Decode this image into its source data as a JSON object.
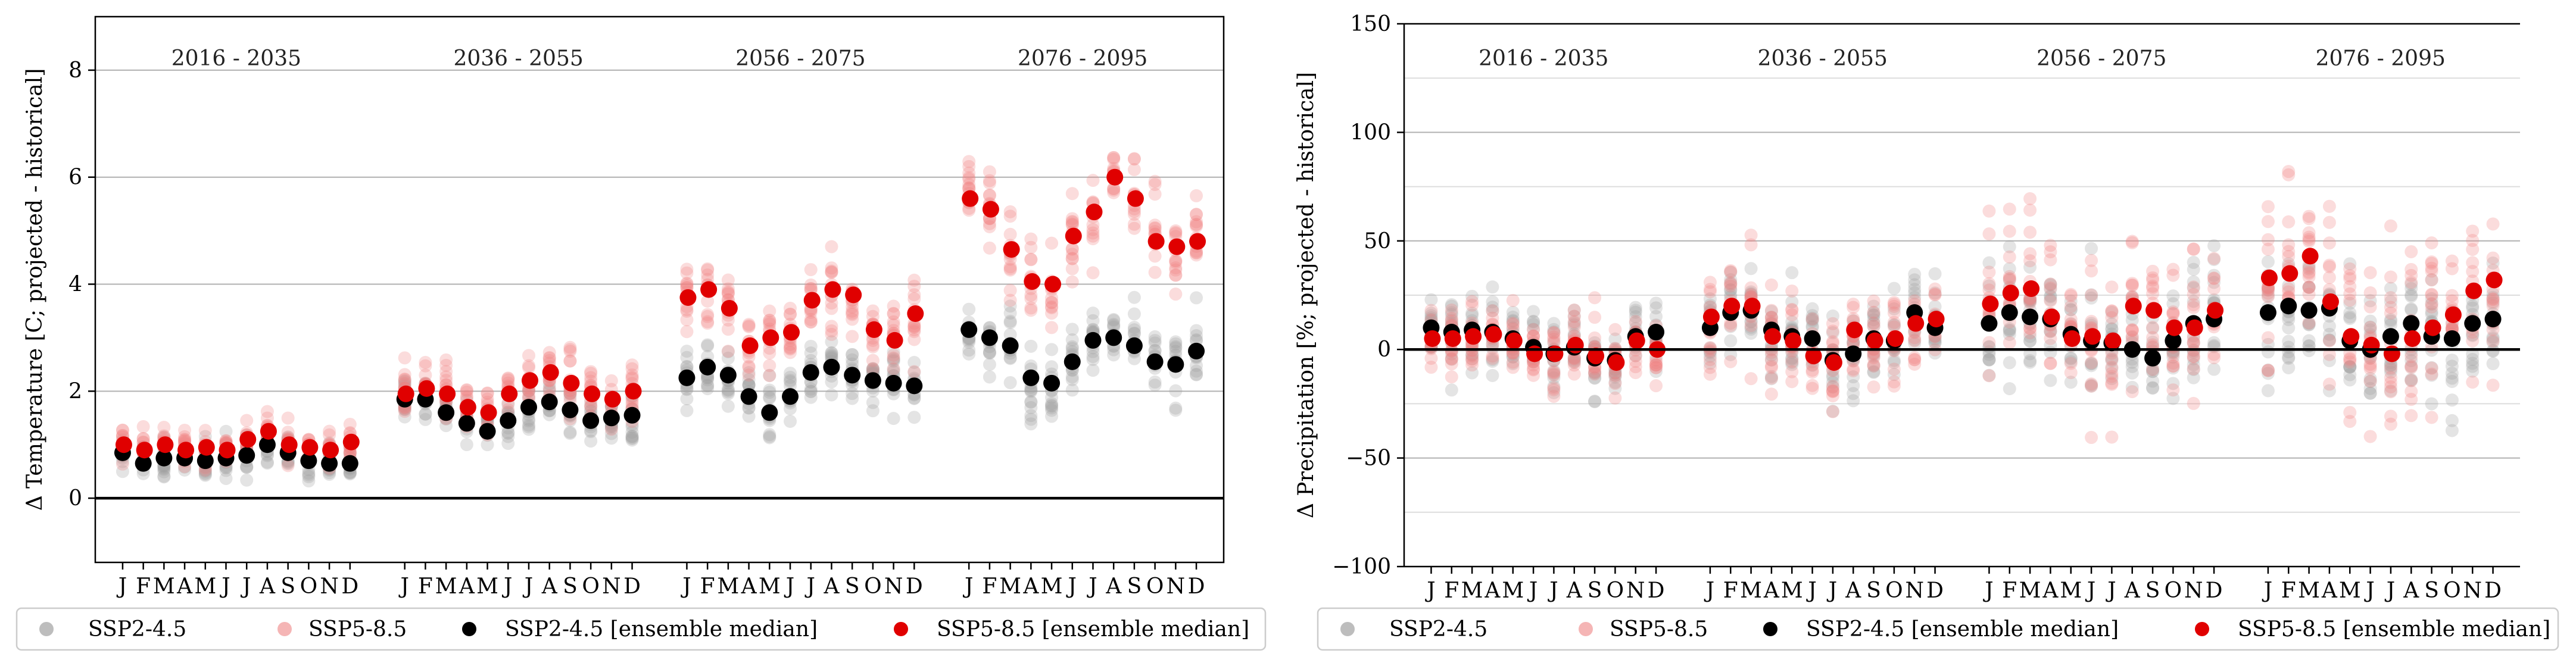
{
  "legend": {
    "entries": [
      {
        "label": "SSP2-4.5",
        "color": "#9e9e9e"
      },
      {
        "label": "SSP5-8.5",
        "color": "#f4a6a6"
      },
      {
        "label": "SSP2-4.5 [ensemble median]",
        "color": "#000000"
      },
      {
        "label": "SSP5-8.5 [ensemble median]",
        "color": "#e00000"
      }
    ]
  },
  "chart_data": [
    {
      "type": "scatter",
      "title": "",
      "ylabel": "Δ Temperature [C; projected - historical]",
      "xlabel": "",
      "ylim": [
        -1.2,
        9.0
      ],
      "yticks": [
        0,
        2,
        4,
        6,
        8
      ],
      "grid": "horizontal",
      "zero_line": true,
      "periods": [
        "2016 - 2035",
        "2036 - 2055",
        "2056 - 2075",
        "2076 - 2095"
      ],
      "month_labels": [
        "J",
        "F",
        "M",
        "A",
        "M",
        "J",
        "J",
        "A",
        "S",
        "O",
        "N",
        "D"
      ],
      "series": [
        {
          "name": "SSP2-4.5 [ensemble median]",
          "values": [
            [
              0.85,
              0.65,
              0.75,
              0.75,
              0.7,
              0.75,
              0.8,
              1.0,
              0.85,
              0.7,
              0.65,
              0.65
            ],
            [
              1.85,
              1.85,
              1.6,
              1.4,
              1.25,
              1.45,
              1.7,
              1.8,
              1.65,
              1.45,
              1.5,
              1.55
            ],
            [
              2.25,
              2.45,
              2.3,
              1.9,
              1.6,
              1.9,
              2.35,
              2.45,
              2.3,
              2.2,
              2.15,
              2.1
            ],
            [
              3.15,
              3.0,
              2.85,
              2.25,
              2.15,
              2.55,
              2.95,
              3.0,
              2.85,
              2.55,
              2.5,
              2.75
            ]
          ]
        },
        {
          "name": "SSP5-8.5 [ensemble median]",
          "values": [
            [
              1.0,
              0.9,
              1.0,
              0.9,
              0.95,
              0.9,
              1.1,
              1.25,
              1.0,
              0.95,
              0.9,
              1.05
            ],
            [
              1.95,
              2.05,
              1.95,
              1.7,
              1.6,
              1.95,
              2.2,
              2.35,
              2.15,
              1.95,
              1.85,
              2.0
            ],
            [
              3.75,
              3.9,
              3.55,
              2.85,
              3.0,
              3.1,
              3.7,
              3.9,
              3.8,
              3.15,
              2.95,
              3.45
            ],
            [
              5.6,
              5.4,
              4.65,
              4.05,
              4.0,
              4.9,
              5.35,
              6.0,
              5.6,
              4.8,
              4.7,
              4.8
            ]
          ]
        }
      ]
    },
    {
      "type": "scatter",
      "title": "",
      "ylabel": "Δ Precipitation [%; projected - historical]",
      "xlabel": "",
      "ylim": [
        -100,
        150
      ],
      "yticks": [
        -100,
        -50,
        0,
        50,
        100,
        150
      ],
      "grid": "horizontal",
      "zero_line": true,
      "periods": [
        "2016 - 2035",
        "2036 - 2055",
        "2056 - 2075",
        "2076 - 2095"
      ],
      "month_labels": [
        "J",
        "F",
        "M",
        "A",
        "M",
        "J",
        "J",
        "A",
        "S",
        "O",
        "N",
        "D"
      ],
      "series": [
        {
          "name": "SSP2-4.5 [ensemble median]",
          "values": [
            [
              10,
              8,
              9,
              8,
              5,
              1,
              -2,
              1,
              -4,
              -5,
              6,
              8
            ],
            [
              10,
              17,
              18,
              9,
              6,
              5,
              -5,
              -2,
              5,
              4,
              17,
              10
            ],
            [
              12,
              17,
              15,
              14,
              7,
              4,
              3,
              0,
              -4,
              4,
              12,
              14
            ],
            [
              17,
              20,
              18,
              19,
              4,
              0,
              6,
              12,
              6,
              5,
              12,
              14
            ]
          ]
        },
        {
          "name": "SSP5-8.5 [ensemble median]",
          "values": [
            [
              5,
              5,
              6,
              7,
              4,
              -2,
              -2,
              2,
              -3,
              -6,
              4,
              0
            ],
            [
              15,
              20,
              20,
              6,
              4,
              -3,
              -6,
              9,
              4,
              5,
              12,
              14
            ],
            [
              21,
              26,
              28,
              15,
              5,
              6,
              4,
              20,
              18,
              10,
              10,
              18
            ],
            [
              33,
              35,
              43,
              22,
              6,
              2,
              -2,
              5,
              10,
              16,
              27,
              32
            ]
          ]
        }
      ]
    }
  ]
}
